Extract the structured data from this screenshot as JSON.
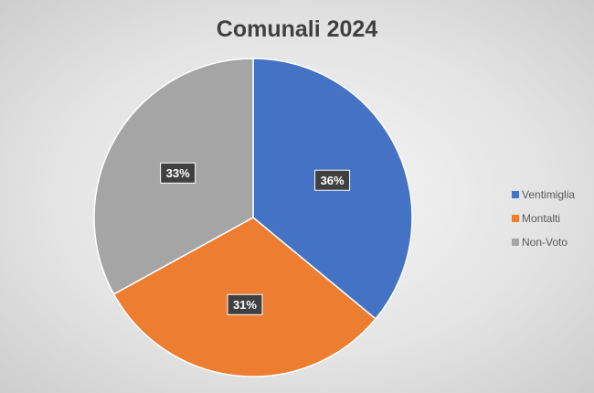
{
  "chart_data": {
    "type": "pie",
    "title": "Comunali 2024",
    "slices": [
      {
        "name": "Ventimiglia",
        "value": 36,
        "label": "36%",
        "color": "#4472C4"
      },
      {
        "name": "Montalti",
        "value": 31,
        "label": "31%",
        "color": "#ED7D31"
      },
      {
        "name": "Non-Voto",
        "value": 33,
        "label": "33%",
        "color": "#A5A5A5"
      }
    ],
    "start_angle": "12 o'clock, clockwise",
    "data_label_style": "dark boxed white bold percent",
    "legend_position": "right"
  },
  "colors": {
    "background": "#E6E6E6",
    "title": "#404040",
    "label_box": "#404040",
    "legend_text": "#595959"
  }
}
